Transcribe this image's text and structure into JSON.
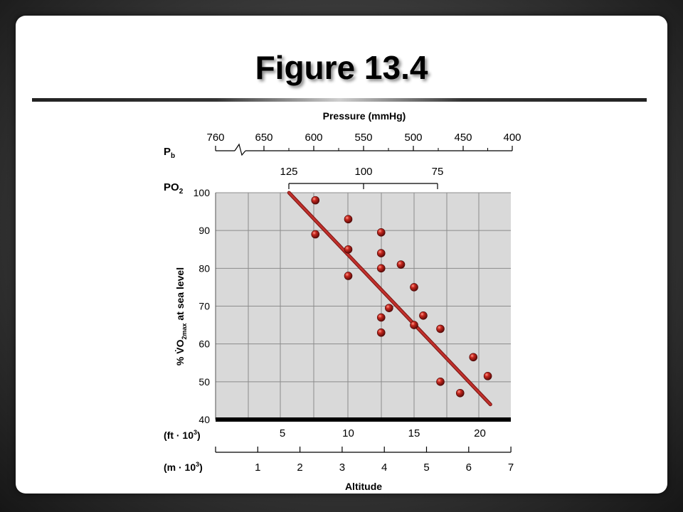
{
  "slide": {
    "title": "Figure 13.4"
  },
  "chart_data": {
    "type": "scatter",
    "title": "",
    "top_axis_title": "Pressure (mmHg)",
    "pb_label": "P",
    "pb_sub": "b",
    "pb_ticks": [
      "760",
      "650",
      "600",
      "550",
      "500",
      "450",
      "400"
    ],
    "po2_label": "PO",
    "po2_sub": "2",
    "po2_ticks": [
      "125",
      "100",
      "75"
    ],
    "ylabel": "% VO2max at sea level",
    "ylabel_parts": {
      "pre": "% ",
      "v": "V̇",
      "o": "O",
      "sub": "2max",
      "post": " at sea level"
    },
    "ylim": [
      40,
      100
    ],
    "yticks": [
      100,
      90,
      80,
      70,
      60,
      50,
      40
    ],
    "xlabel": "Altitude",
    "ft_label": "(ft · 10",
    "ft_sup": "3",
    "ft_close": ")",
    "ft_ticks": [
      5,
      10,
      15,
      20
    ],
    "m_label": "(m · 10",
    "m_sup": "3",
    "m_close": ")",
    "m_ticks": [
      1,
      2,
      3,
      4,
      5,
      6,
      7
    ],
    "xlim_ft": [
      0,
      22.5
    ],
    "grid": true,
    "points_ft": [
      {
        "x": 7.5,
        "y": 98
      },
      {
        "x": 7.5,
        "y": 89
      },
      {
        "x": 10.0,
        "y": 93
      },
      {
        "x": 10.0,
        "y": 85
      },
      {
        "x": 10.0,
        "y": 78
      },
      {
        "x": 12.5,
        "y": 89.5
      },
      {
        "x": 12.5,
        "y": 84
      },
      {
        "x": 12.5,
        "y": 80
      },
      {
        "x": 12.5,
        "y": 67
      },
      {
        "x": 12.5,
        "y": 63
      },
      {
        "x": 13.1,
        "y": 69.5
      },
      {
        "x": 14.0,
        "y": 81
      },
      {
        "x": 15.0,
        "y": 75
      },
      {
        "x": 15.0,
        "y": 65
      },
      {
        "x": 15.7,
        "y": 67.5
      },
      {
        "x": 17.0,
        "y": 64
      },
      {
        "x": 17.0,
        "y": 50
      },
      {
        "x": 18.5,
        "y": 47
      },
      {
        "x": 19.5,
        "y": 56.5
      },
      {
        "x": 20.6,
        "y": 51.5
      }
    ],
    "trend_line": {
      "x": [
        5.5,
        20.8
      ],
      "y": [
        100,
        44
      ]
    },
    "colors": {
      "plot_bg": "#d9d9d9",
      "grid": "#8c8c8c",
      "point": "#b21e1e",
      "line": "#c0302c"
    }
  }
}
